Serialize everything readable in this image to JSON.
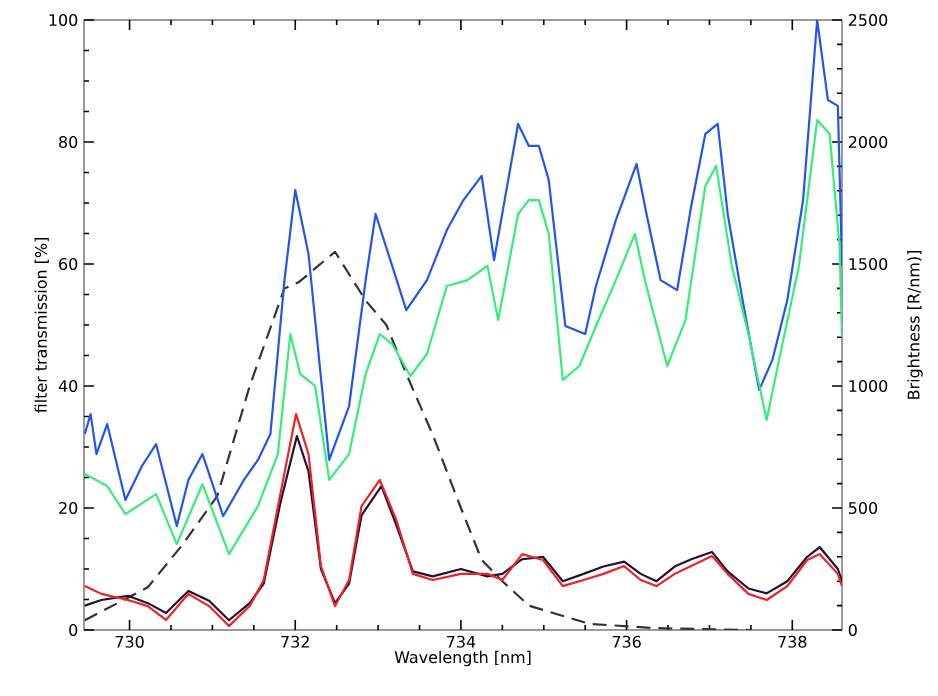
{
  "chart_data": {
    "type": "line",
    "xlabel": "Wavelength [nm]",
    "ylabel": "filter transmission [%]",
    "y2label": "Brightness [R/nm)]",
    "xlim": [
      729.45,
      738.6
    ],
    "xticks": [
      730,
      732,
      734,
      736,
      738
    ],
    "ylim": [
      0,
      100
    ],
    "yticks": [
      0,
      20,
      40,
      60,
      80,
      100
    ],
    "y2lim": [
      0,
      2500
    ],
    "y2ticks": [
      0,
      500,
      1000,
      1500,
      2000,
      2500
    ],
    "grid": false,
    "marker": "none",
    "series": [
      {
        "color": "#2255ee",
        "axis": "y2",
        "line_style": "solid",
        "x": [
          729.46,
          729.53,
          729.6,
          729.73,
          729.95,
          730.15,
          730.32,
          730.57,
          730.71,
          730.88,
          731.13,
          731.38,
          731.55,
          731.7,
          731.87,
          732.0,
          732.16,
          732.41,
          732.65,
          732.85,
          732.97,
          733.17,
          733.34,
          733.59,
          733.83,
          734.03,
          734.25,
          734.4,
          734.69,
          734.82,
          734.94,
          735.06,
          735.26,
          735.5,
          735.63,
          735.87,
          736.12,
          736.24,
          736.41,
          736.61,
          736.78,
          736.95,
          737.1,
          737.22,
          737.4,
          737.6,
          737.76,
          737.94,
          738.13,
          738.3,
          738.43,
          738.55,
          738.6
        ],
        "values": [
          803,
          885,
          721,
          844,
          533,
          672,
          762,
          426,
          615,
          721,
          467,
          615,
          697,
          803,
          1434,
          1803,
          1541,
          697,
          918,
          1434,
          1705,
          1492,
          1311,
          1434,
          1639,
          1762,
          1861,
          1516,
          2074,
          1984,
          1984,
          1844,
          1246,
          1213,
          1410,
          1680,
          1910,
          1705,
          1434,
          1393,
          1738,
          2033,
          2074,
          1705,
          1352,
          984,
          1107,
          1352,
          1762,
          2500,
          2172,
          2148,
          1500
        ]
      },
      {
        "color": "#33ee77",
        "axis": "y2",
        "line_style": "solid",
        "x": [
          729.46,
          729.73,
          729.95,
          730.32,
          730.57,
          730.88,
          731.2,
          731.55,
          731.79,
          731.94,
          732.06,
          732.24,
          732.41,
          732.65,
          732.85,
          733.02,
          733.17,
          733.39,
          733.59,
          733.83,
          734.08,
          734.32,
          734.45,
          734.69,
          734.82,
          734.94,
          735.06,
          735.23,
          735.43,
          735.63,
          735.87,
          736.1,
          736.22,
          736.49,
          736.71,
          736.95,
          737.08,
          737.27,
          737.47,
          737.69,
          737.84,
          738.08,
          738.3,
          738.45,
          738.57,
          738.6
        ],
        "values": [
          639,
          590,
          475,
          557,
          352,
          598,
          311,
          508,
          721,
          1213,
          1049,
          1000,
          615,
          721,
          1049,
          1213,
          1172,
          1041,
          1131,
          1410,
          1434,
          1492,
          1270,
          1705,
          1762,
          1762,
          1623,
          1025,
          1082,
          1246,
          1434,
          1623,
          1434,
          1082,
          1270,
          1820,
          1902,
          1492,
          1213,
          861,
          1107,
          1492,
          2090,
          2033,
          1574,
          1200
        ]
      },
      {
        "color": "#221133",
        "axis": "y2",
        "line_style": "solid",
        "x": [
          729.46,
          729.66,
          729.98,
          730.22,
          730.44,
          730.71,
          730.96,
          731.2,
          731.45,
          731.62,
          731.82,
          732.02,
          732.16,
          732.31,
          732.48,
          732.65,
          732.8,
          733.04,
          733.22,
          733.42,
          733.66,
          734.0,
          734.32,
          734.5,
          734.74,
          734.99,
          735.23,
          735.48,
          735.72,
          735.97,
          736.17,
          736.36,
          736.58,
          736.78,
          737.03,
          737.22,
          737.47,
          737.69,
          737.94,
          738.18,
          738.33,
          738.55,
          738.6
        ],
        "values": [
          100,
          123,
          140,
          110,
          70,
          160,
          120,
          40,
          110,
          190,
          520,
          795,
          650,
          250,
          110,
          190,
          470,
          590,
          430,
          240,
          220,
          250,
          220,
          230,
          290,
          300,
          200,
          230,
          260,
          280,
          230,
          200,
          260,
          290,
          320,
          240,
          170,
          150,
          200,
          300,
          340,
          250,
          200
        ]
      },
      {
        "color": "#ee2222",
        "axis": "y2",
        "line_style": "solid",
        "x": [
          729.46,
          729.66,
          729.98,
          730.22,
          730.44,
          730.71,
          730.96,
          731.2,
          731.45,
          731.62,
          731.82,
          732.01,
          732.16,
          732.31,
          732.48,
          732.65,
          732.8,
          733.02,
          733.22,
          733.42,
          733.66,
          734.0,
          734.32,
          734.5,
          734.74,
          734.99,
          735.23,
          735.48,
          735.72,
          735.97,
          736.17,
          736.36,
          736.58,
          736.78,
          737.03,
          737.22,
          737.47,
          737.69,
          737.94,
          738.18,
          738.33,
          738.55,
          738.6
        ],
        "values": [
          180,
          148,
          123,
          98,
          41,
          148,
          98,
          16,
          98,
          205,
          557,
          885,
          721,
          262,
          98,
          205,
          508,
          615,
          451,
          230,
          205,
          230,
          230,
          205,
          311,
          287,
          180,
          205,
          230,
          262,
          205,
          180,
          230,
          262,
          303,
          230,
          148,
          123,
          180,
          287,
          311,
          230,
          180
        ]
      },
      {
        "color": "#333333",
        "axis": "y",
        "line_style": "dashed",
        "x": [
          729.46,
          730.22,
          730.64,
          731.06,
          731.45,
          731.87,
          732.04,
          732.48,
          732.85,
          733.1,
          733.34,
          733.66,
          734.0,
          734.25,
          734.5,
          734.74,
          734.82,
          735.55,
          736.36,
          737.5
        ],
        "values": [
          1.6,
          7,
          14,
          22,
          40,
          56,
          57,
          62,
          54,
          50,
          42,
          32,
          20,
          11.5,
          8,
          5,
          4,
          1,
          0.3,
          0
        ]
      }
    ]
  }
}
